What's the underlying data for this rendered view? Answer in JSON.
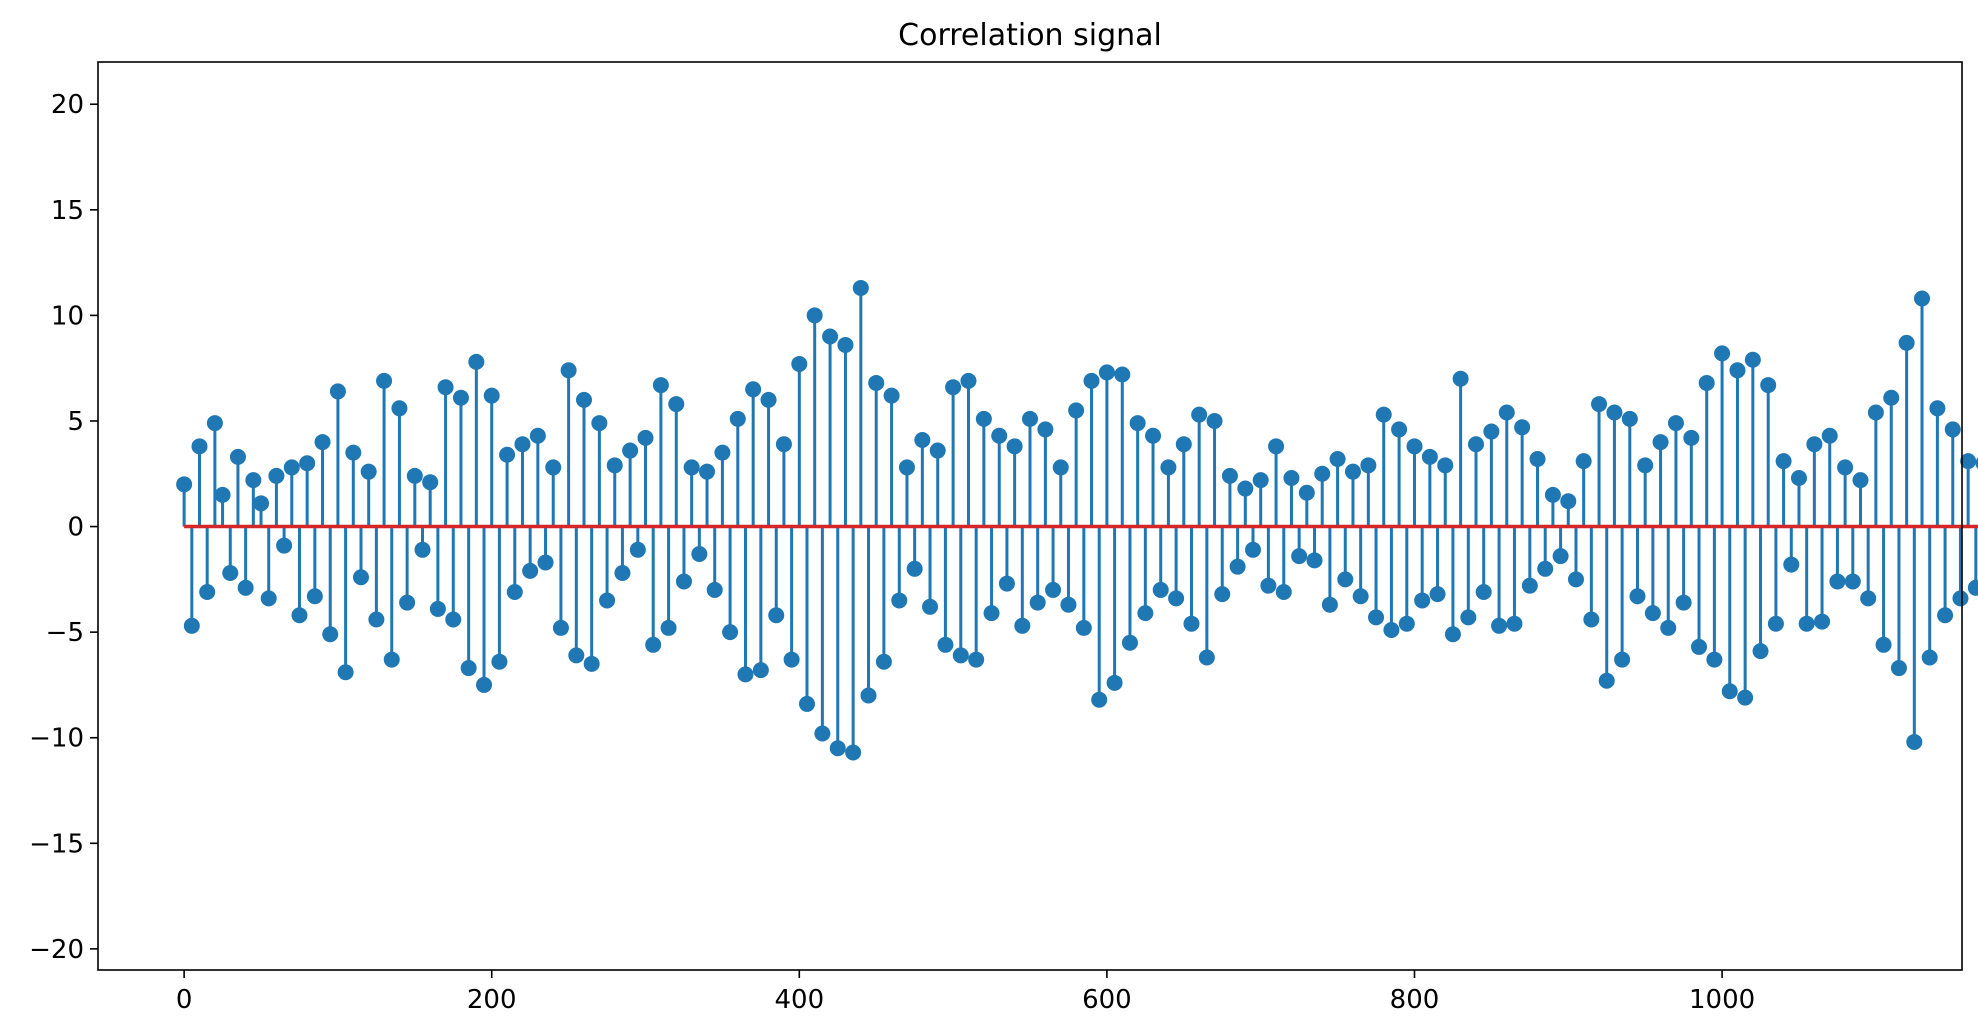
{
  "chart_data": {
    "type": "stem",
    "title": "Correlation signal",
    "xlabel": "",
    "ylabel": "",
    "xlim": [
      -56,
      1156
    ],
    "ylim": [
      -21,
      22
    ],
    "x_ticks": [
      0,
      200,
      400,
      600,
      800,
      1000
    ],
    "y_ticks": [
      -20,
      -15,
      -10,
      -5,
      0,
      5,
      10,
      15,
      20
    ],
    "x_tick_labels": [
      "0",
      "200",
      "400",
      "600",
      "800",
      "1000"
    ],
    "y_tick_labels": [
      "−20",
      "−15",
      "−10",
      "−5",
      "0",
      "5",
      "10",
      "15",
      "20"
    ],
    "grid": false,
    "legend": "none",
    "baseline": 0,
    "x_start": 0,
    "x_step": 5,
    "values": [
      2.0,
      -4.7,
      3.8,
      -3.1,
      4.9,
      1.5,
      -2.2,
      3.3,
      -2.9,
      2.2,
      1.1,
      -3.4,
      2.4,
      -0.9,
      2.8,
      -4.2,
      3.0,
      -3.3,
      4.0,
      -5.1,
      6.4,
      -6.9,
      3.5,
      -2.4,
      2.6,
      -4.4,
      6.9,
      -6.3,
      5.6,
      -3.6,
      2.4,
      -1.1,
      2.1,
      -3.9,
      6.6,
      -4.4,
      6.1,
      -6.7,
      7.8,
      -7.5,
      6.2,
      -6.4,
      3.4,
      -3.1,
      3.9,
      -2.1,
      4.3,
      -1.7,
      2.8,
      -4.8,
      7.4,
      -6.1,
      6.0,
      -6.5,
      4.9,
      -3.5,
      2.9,
      -2.2,
      3.6,
      -1.1,
      4.2,
      -5.6,
      6.7,
      -4.8,
      5.8,
      -2.6,
      2.8,
      -1.3,
      2.6,
      -3.0,
      3.5,
      -5.0,
      5.1,
      -7.0,
      6.5,
      -6.8,
      6.0,
      -4.2,
      3.9,
      -6.3,
      7.7,
      -8.4,
      10.0,
      -9.8,
      9.0,
      -10.5,
      8.6,
      -10.7,
      11.3,
      -8.0,
      6.8,
      -6.4,
      6.2,
      -3.5,
      2.8,
      -2.0,
      4.1,
      -3.8,
      3.6,
      -5.6,
      6.6,
      -6.1,
      6.9,
      -6.3,
      5.1,
      -4.1,
      4.3,
      -2.7,
      3.8,
      -4.7,
      5.1,
      -3.6,
      4.6,
      -3.0,
      2.8,
      -3.7,
      5.5,
      -4.8,
      6.9,
      -8.2,
      7.3,
      -7.4,
      7.2,
      -5.5,
      4.9,
      -4.1,
      4.3,
      -3.0,
      2.8,
      -3.4,
      3.9,
      -4.6,
      5.3,
      -6.2,
      5.0,
      -3.2,
      2.4,
      -1.9,
      1.8,
      -1.1,
      2.2,
      -2.8,
      3.8,
      -3.1,
      2.3,
      -1.4,
      1.6,
      -1.6,
      2.5,
      -3.7,
      3.2,
      -2.5,
      2.6,
      -3.3,
      2.9,
      -4.3,
      5.3,
      -4.9,
      4.6,
      -4.6,
      3.8,
      -3.5,
      3.3,
      -3.2,
      2.9,
      -5.1,
      7.0,
      -4.3,
      3.9,
      -3.1,
      4.5,
      -4.7,
      5.4,
      -4.6,
      4.7,
      -2.8,
      3.2,
      -2.0,
      1.5,
      -1.4,
      1.2,
      -2.5,
      3.1,
      -4.4,
      5.8,
      -7.3,
      5.4,
      -6.3,
      5.1,
      -3.3,
      2.9,
      -4.1,
      4.0,
      -4.8,
      4.9,
      -3.6,
      4.2,
      -5.7,
      6.8,
      -6.3,
      8.2,
      -7.8,
      7.4,
      -8.1,
      7.9,
      -5.9,
      6.7,
      -4.6,
      3.1,
      -1.8,
      2.3,
      -4.6,
      3.9,
      -4.5,
      4.3,
      -2.6,
      2.8,
      -2.6,
      2.2,
      -3.4,
      5.4,
      -5.6,
      6.1,
      -6.7,
      8.7,
      -10.2,
      10.8,
      -6.2,
      5.6,
      -4.2,
      4.6,
      -3.4,
      3.1,
      -2.9,
      3.0,
      -3.6,
      6.2,
      -4.9,
      4.4,
      -2.2,
      2.4,
      -2.5,
      3.4,
      -1.6,
      2.9,
      -2.7,
      3.8,
      -5.8,
      6.0,
      -5.5,
      5.4,
      -6.1,
      5.0,
      -5.3,
      5.4,
      -4.4,
      3.9,
      -3.4,
      2.9,
      -3.8,
      4.1,
      -3.4,
      3.3,
      -3.0,
      2.9,
      -4.1,
      4.2,
      -4.0,
      5.0,
      -5.9,
      6.8,
      -8.1,
      8.9,
      -8.4,
      7.3,
      -5.5,
      5.1,
      -3.2,
      2.1,
      -1.6,
      1.8,
      -2.9,
      3.2,
      -3.8,
      4.6,
      -2.7,
      1.9,
      -1.3,
      1.7,
      -2.4,
      2.6,
      -2.9,
      3.1,
      -3.6,
      4.3,
      -5.4,
      7.0,
      -6.2,
      6.4,
      -5.8,
      6.0,
      -4.3,
      3.6,
      -2.9,
      2.4,
      -2.1,
      1.8,
      -1.3,
      1.6,
      -1.8,
      1.5,
      -2.4,
      2.8,
      -2.9,
      3.0,
      -3.9,
      3.4,
      -2.3,
      2.1,
      -1.4,
      1.9,
      -3.2,
      4.1,
      -4.9,
      5.8,
      -6.7,
      6.6,
      -5.4,
      6.8,
      -5.8,
      7.9,
      -9.3,
      8.1,
      -7.4,
      5.3,
      -3.6,
      3.2,
      -3.1,
      4.0,
      -2.8,
      5.6,
      -2.6,
      2.4,
      -3.3,
      4.1,
      -3.0,
      2.5,
      -6.7,
      8.8,
      -9.9,
      10.0,
      -8.0,
      7.6,
      -6.1,
      5.2,
      -4.0,
      3.7,
      -3.1,
      2.9,
      -5.6,
      6.2,
      -6.8,
      8.8,
      -7.3,
      8.4,
      -6.5,
      6.1,
      -5.1,
      4.0,
      -3.9,
      3.3,
      -2.5,
      2.4,
      -3.6,
      4.3,
      -5.1,
      5.4,
      -6.5,
      5.0,
      -4.0,
      3.3,
      -2.9,
      2.6,
      -3.0,
      2.3,
      -3.6,
      3.3,
      -2.8,
      2.4,
      -5.8,
      8.7,
      -9.8,
      10.9,
      -13.1,
      14.4,
      -16.6,
      17.5,
      -18.3,
      20.0,
      -19.0,
      18.9,
      -16.8,
      16.5,
      -13.2,
      14.8,
      -12.8,
      11.0,
      -10.4,
      8.6,
      -6.4,
      5.1,
      -3.5,
      2.6,
      -1.9,
      1.7,
      -2.2,
      2.9,
      -3.5,
      3.2,
      -4.1,
      2.6,
      -1.9,
      2.1,
      -1.3,
      1.2,
      -2.1,
      2.3,
      -3.1,
      3.4,
      -2.6,
      4.2,
      -3.9,
      2.9,
      -2.1,
      2.8,
      -3.8,
      2.4,
      -4.4,
      3.2,
      -4.7,
      3.4,
      -3.9,
      3.5,
      -2.4,
      2.1,
      -3.2,
      3.1,
      -4.0,
      5.4,
      -7.2,
      8.1,
      -8.2,
      5.8,
      -4.4,
      4.5,
      -3.6,
      3.1,
      -2.5,
      1.9,
      -1.2,
      2.2,
      -1.8,
      2.3,
      -1.6,
      3.2,
      -3.3,
      4.1,
      -1.9,
      2.3,
      -2.7,
      2.6,
      -2.0,
      1.8,
      -1.3,
      2.2,
      -2.7,
      3.1,
      -2.2,
      2.5,
      -1.7,
      2.4,
      -5.6,
      6.3,
      -4.2,
      5.7,
      -4.6,
      6.1,
      -5.5,
      4.9,
      -3.9,
      4.6,
      -3.1,
      3.9,
      -4.3,
      5.1,
      -5.5,
      6.1,
      -6.6,
      7.0,
      -7.1,
      5.7,
      -4.3,
      3.9,
      -2.4,
      2.6,
      -3.1,
      2.9,
      -2.3,
      2.7,
      -3.3,
      4.1,
      -4.8,
      5.8,
      -4.4,
      3.8,
      -3.3,
      3.9,
      -4.7,
      4.8,
      -5.4,
      5.1,
      -3.9,
      4.6,
      -4.6,
      4.9,
      -5.6,
      5.3,
      -4.0,
      3.8,
      -4.4,
      3.6,
      -5.9,
      7.3
    ]
  }
}
